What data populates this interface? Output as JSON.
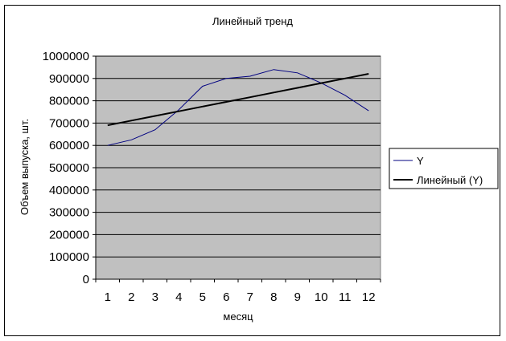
{
  "chart_data": {
    "type": "line",
    "title": "Линейный тренд",
    "xlabel": "месяц",
    "ylabel": "Объем выпуска, шт.",
    "categories": [
      "1",
      "2",
      "3",
      "4",
      "5",
      "6",
      "7",
      "8",
      "9",
      "10",
      "11",
      "12"
    ],
    "x": [
      1,
      2,
      3,
      4,
      5,
      6,
      7,
      8,
      9,
      10,
      11,
      12
    ],
    "ylim": [
      0,
      1000000
    ],
    "yticks": [
      "0",
      "100000",
      "200000",
      "300000",
      "400000",
      "500000",
      "600000",
      "700000",
      "800000",
      "900000",
      "1000000"
    ],
    "grid": true,
    "plot_background": "#c0c0c0",
    "legend_position": "right",
    "series": [
      {
        "name": "Y",
        "color": "#000080",
        "values": [
          600000,
          625000,
          670000,
          760000,
          865000,
          900000,
          910000,
          940000,
          925000,
          880000,
          825000,
          755000
        ]
      },
      {
        "name": "Линейный (Y)",
        "color": "#000000",
        "values": [
          690000,
          711000,
          732000,
          753000,
          774000,
          795000,
          816000,
          837000,
          858000,
          879000,
          900000,
          921000
        ]
      }
    ]
  }
}
